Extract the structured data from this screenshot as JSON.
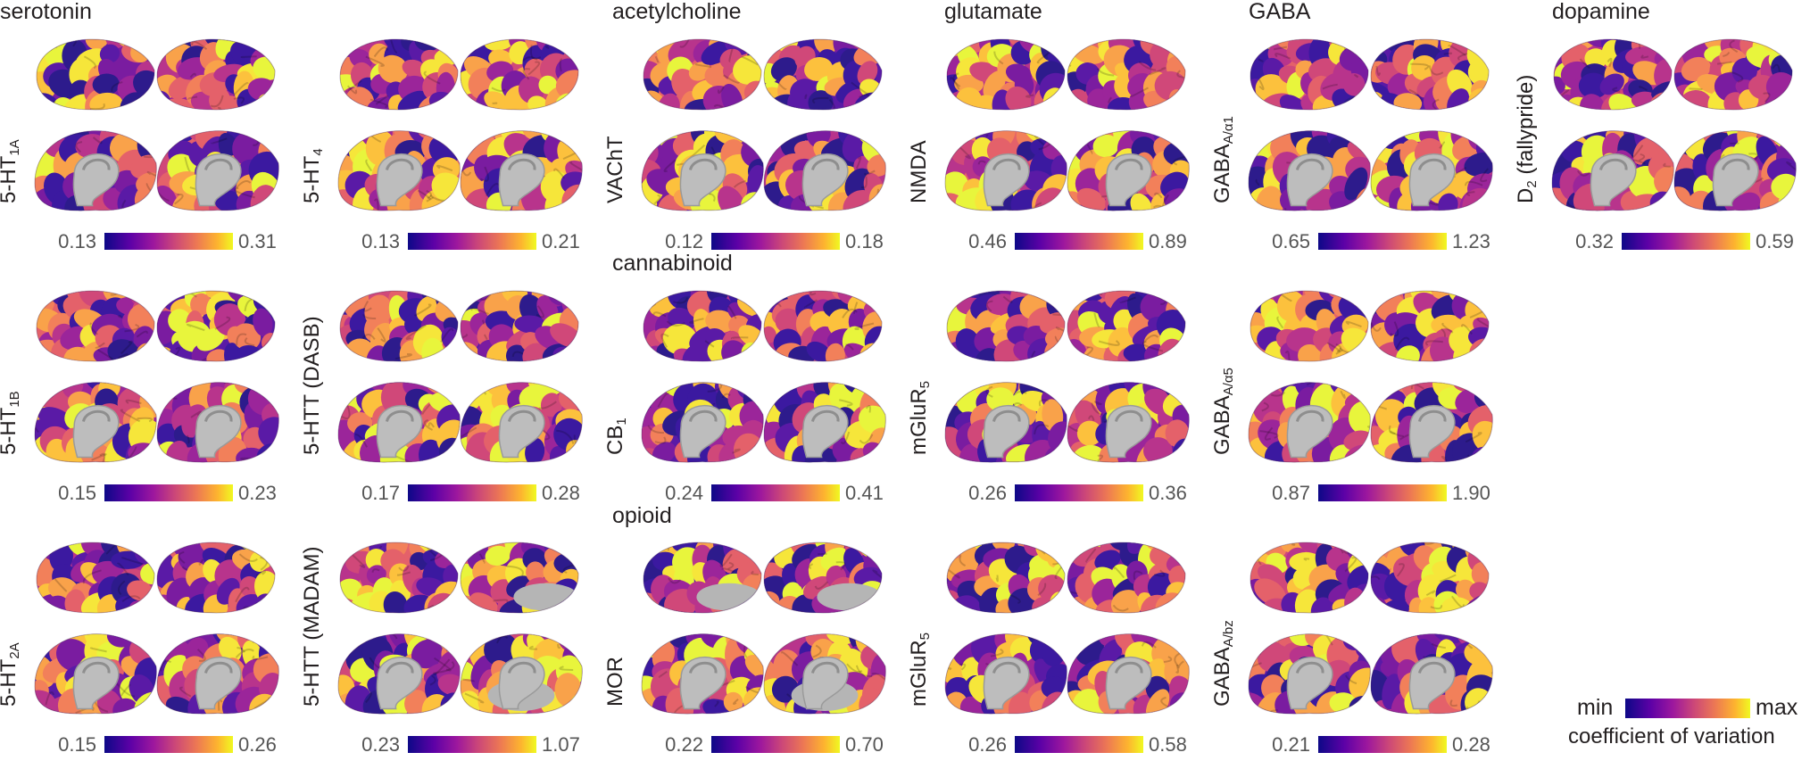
{
  "groups": [
    {
      "id": "serotonin",
      "label": "serotonin"
    },
    {
      "id": "acetylcholine",
      "label": "acetylcholine"
    },
    {
      "id": "glutamate",
      "label": "glutamate"
    },
    {
      "id": "gaba",
      "label": "GABA"
    },
    {
      "id": "dopamine",
      "label": "dopamine"
    },
    {
      "id": "cannabinoid",
      "label": "cannabinoid"
    },
    {
      "id": "opioid",
      "label": "opioid"
    }
  ],
  "panels": [
    {
      "id": "5ht1a",
      "label_main": "5-HT",
      "label_sub": "1A",
      "label_rest": "",
      "min": "0.13",
      "max": "0.31",
      "seed": 3
    },
    {
      "id": "5ht4",
      "label_main": "5-HT",
      "label_sub": "4",
      "label_rest": "",
      "min": "0.13",
      "max": "0.21",
      "seed": 7
    },
    {
      "id": "vacht",
      "label_main": "VAChT",
      "label_sub": "",
      "label_rest": "",
      "min": "0.12",
      "max": "0.18",
      "seed": 11
    },
    {
      "id": "nmda",
      "label_main": "NMDA",
      "label_sub": "",
      "label_rest": "",
      "min": "0.46",
      "max": "0.89",
      "seed": 13
    },
    {
      "id": "gabaa1",
      "label_main": "GABA",
      "label_sub": "A/α1",
      "label_rest": "",
      "min": "0.65",
      "max": "1.23",
      "seed": 17
    },
    {
      "id": "d2",
      "label_main": "D",
      "label_sub": "2",
      "label_rest": " (fallypride)",
      "min": "0.32",
      "max": "0.59",
      "seed": 19
    },
    {
      "id": "5ht1b",
      "label_main": "5-HT",
      "label_sub": "1B",
      "label_rest": "",
      "min": "0.15",
      "max": "0.23",
      "seed": 23
    },
    {
      "id": "5htt_dasb",
      "label_main": "5-HTT (DASB)",
      "label_sub": "",
      "label_rest": "",
      "min": "0.17",
      "max": "0.28",
      "seed": 29
    },
    {
      "id": "cb1",
      "label_main": "CB",
      "label_sub": "1",
      "label_rest": "",
      "min": "0.24",
      "max": "0.41",
      "seed": 31
    },
    {
      "id": "mglur5a",
      "label_main": "mGluR",
      "label_sub": "5",
      "label_rest": "",
      "min": "0.26",
      "max": "0.36",
      "seed": 37
    },
    {
      "id": "gabaa5",
      "label_main": "GABA",
      "label_sub": "A/α5",
      "label_rest": "",
      "min": "0.87",
      "max": "1.90",
      "seed": 41
    },
    {
      "id": "5ht2a",
      "label_main": "5-HT",
      "label_sub": "2A",
      "label_rest": "",
      "min": "0.15",
      "max": "0.26",
      "seed": 43
    },
    {
      "id": "5htt_madam",
      "label_main": "5-HTT (MADAM)",
      "label_sub": "",
      "label_rest": "",
      "min": "0.23",
      "max": "1.07",
      "seed": 47,
      "gray": true
    },
    {
      "id": "mor",
      "label_main": "MOR",
      "label_sub": "",
      "label_rest": "",
      "min": "0.22",
      "max": "0.70",
      "seed": 53,
      "gray": true
    },
    {
      "id": "mglur5b",
      "label_main": "mGluR",
      "label_sub": "5",
      "label_rest": "",
      "min": "0.26",
      "max": "0.58",
      "seed": 59
    },
    {
      "id": "gabaabz",
      "label_main": "GABA",
      "label_sub": "A/bz",
      "label_rest": "",
      "min": "0.21",
      "max": "0.28",
      "seed": 61
    }
  ],
  "legend": {
    "min": "min",
    "max": "max",
    "caption": "coefficient of variation"
  }
}
